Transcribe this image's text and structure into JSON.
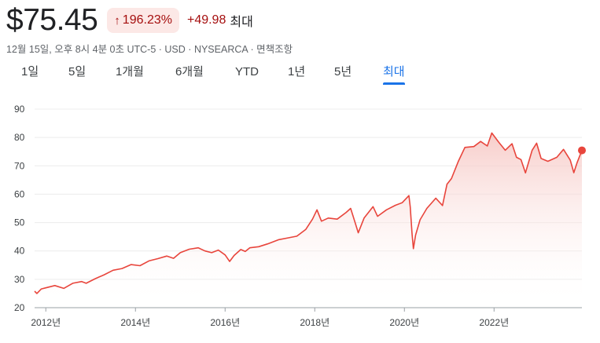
{
  "header": {
    "price": "$75.45",
    "change_percent": "196.23%",
    "change_absolute": "+49.98",
    "period_label": "최대"
  },
  "meta": {
    "timestamp": "12월 15일, 오후 8시 4분 0초 UTC-5",
    "currency": "USD",
    "exchange": "NYSEARCA",
    "disclaimer": "면책조항"
  },
  "tabs": [
    {
      "label": "1일",
      "active": false
    },
    {
      "label": "5일",
      "active": false
    },
    {
      "label": "1개월",
      "active": false
    },
    {
      "label": "6개월",
      "active": false
    },
    {
      "label": "YTD",
      "active": false
    },
    {
      "label": "1년",
      "active": false
    },
    {
      "label": "5년",
      "active": false
    },
    {
      "label": "최대",
      "active": true
    }
  ],
  "colors": {
    "line": "#e8453c",
    "fill_top": "#f6c4c0",
    "negative": "#a50e0e",
    "accent": "#1a73e8",
    "grid": "#ececec"
  },
  "chart_data": {
    "type": "area",
    "title": "",
    "xlabel": "",
    "ylabel": "",
    "ylim": [
      20,
      90
    ],
    "xlim": [
      2011.75,
      2023.96
    ],
    "yticks": [
      20,
      30,
      40,
      50,
      60,
      70,
      80,
      90
    ],
    "xticks": [
      {
        "value": 2012,
        "label": "2012년"
      },
      {
        "value": 2014,
        "label": "2014년"
      },
      {
        "value": 2016,
        "label": "2016년"
      },
      {
        "value": 2018,
        "label": "2018년"
      },
      {
        "value": 2020,
        "label": "2020년"
      },
      {
        "value": 2022,
        "label": "2022년"
      }
    ],
    "grid": true,
    "series": [
      {
        "values": [
          [
            2011.75,
            25.8
          ],
          [
            2011.8,
            25.0
          ],
          [
            2011.9,
            26.6
          ],
          [
            2012.0,
            27.0
          ],
          [
            2012.2,
            27.8
          ],
          [
            2012.4,
            26.8
          ],
          [
            2012.6,
            28.6
          ],
          [
            2012.8,
            29.2
          ],
          [
            2012.9,
            28.6
          ],
          [
            2013.1,
            30.2
          ],
          [
            2013.3,
            31.6
          ],
          [
            2013.5,
            33.2
          ],
          [
            2013.7,
            33.8
          ],
          [
            2013.9,
            35.2
          ],
          [
            2014.1,
            34.8
          ],
          [
            2014.3,
            36.5
          ],
          [
            2014.5,
            37.3
          ],
          [
            2014.7,
            38.2
          ],
          [
            2014.85,
            37.4
          ],
          [
            2015.0,
            39.4
          ],
          [
            2015.2,
            40.6
          ],
          [
            2015.4,
            41.1
          ],
          [
            2015.55,
            40.0
          ],
          [
            2015.7,
            39.4
          ],
          [
            2015.85,
            40.3
          ],
          [
            2016.0,
            38.6
          ],
          [
            2016.1,
            36.3
          ],
          [
            2016.2,
            38.4
          ],
          [
            2016.35,
            40.5
          ],
          [
            2016.45,
            39.8
          ],
          [
            2016.55,
            41.1
          ],
          [
            2016.75,
            41.5
          ],
          [
            2016.95,
            42.5
          ],
          [
            2017.2,
            44.0
          ],
          [
            2017.4,
            44.6
          ],
          [
            2017.6,
            45.2
          ],
          [
            2017.8,
            47.6
          ],
          [
            2017.95,
            51.2
          ],
          [
            2018.05,
            54.5
          ],
          [
            2018.15,
            50.5
          ],
          [
            2018.3,
            51.6
          ],
          [
            2018.5,
            51.2
          ],
          [
            2018.7,
            53.6
          ],
          [
            2018.8,
            55.0
          ],
          [
            2018.9,
            50.0
          ],
          [
            2018.97,
            46.4
          ],
          [
            2019.1,
            51.6
          ],
          [
            2019.3,
            55.6
          ],
          [
            2019.4,
            52.2
          ],
          [
            2019.6,
            54.5
          ],
          [
            2019.8,
            56.1
          ],
          [
            2019.95,
            57.0
          ],
          [
            2020.1,
            59.5
          ],
          [
            2020.13,
            55.5
          ],
          [
            2020.17,
            46.0
          ],
          [
            2020.2,
            40.8
          ],
          [
            2020.25,
            45.6
          ],
          [
            2020.35,
            51.0
          ],
          [
            2020.5,
            55.0
          ],
          [
            2020.7,
            58.6
          ],
          [
            2020.85,
            56.0
          ],
          [
            2020.95,
            63.5
          ],
          [
            2021.05,
            65.5
          ],
          [
            2021.2,
            71.5
          ],
          [
            2021.35,
            76.5
          ],
          [
            2021.55,
            76.8
          ],
          [
            2021.7,
            78.6
          ],
          [
            2021.85,
            77.0
          ],
          [
            2021.95,
            81.6
          ],
          [
            2022.1,
            78.4
          ],
          [
            2022.25,
            75.5
          ],
          [
            2022.4,
            77.8
          ],
          [
            2022.5,
            73.0
          ],
          [
            2022.6,
            72.2
          ],
          [
            2022.7,
            67.5
          ],
          [
            2022.85,
            75.5
          ],
          [
            2022.95,
            78.0
          ],
          [
            2023.05,
            72.6
          ],
          [
            2023.2,
            71.6
          ],
          [
            2023.4,
            73.0
          ],
          [
            2023.55,
            75.8
          ],
          [
            2023.7,
            72.0
          ],
          [
            2023.78,
            67.6
          ],
          [
            2023.85,
            71.0
          ],
          [
            2023.96,
            75.45
          ]
        ]
      }
    ]
  }
}
